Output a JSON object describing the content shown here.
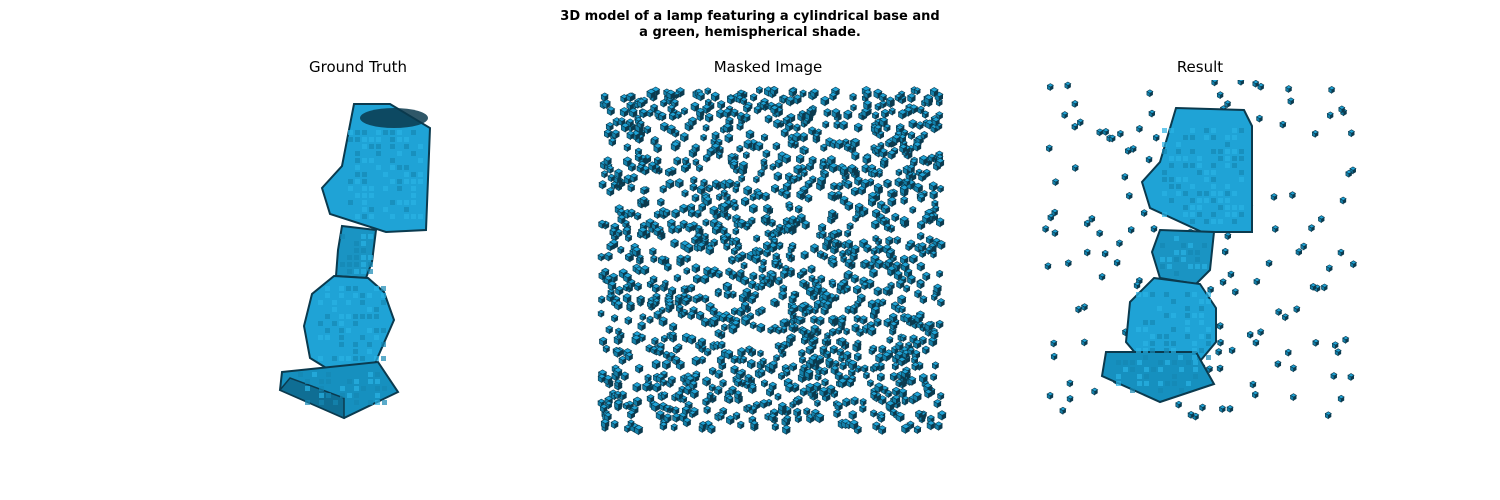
{
  "figure": {
    "title_lines": [
      "3D model of a lamp featuring a cylindrical base and",
      "a green, hemispherical shade."
    ]
  },
  "panels": [
    {
      "title": "Ground Truth"
    },
    {
      "title": "Masked Image"
    },
    {
      "title": "Result"
    }
  ],
  "colors": {
    "voxel_face": "#1fa3d6",
    "voxel_side": "#137fa8",
    "voxel_edge": "#0b3a4e"
  }
}
